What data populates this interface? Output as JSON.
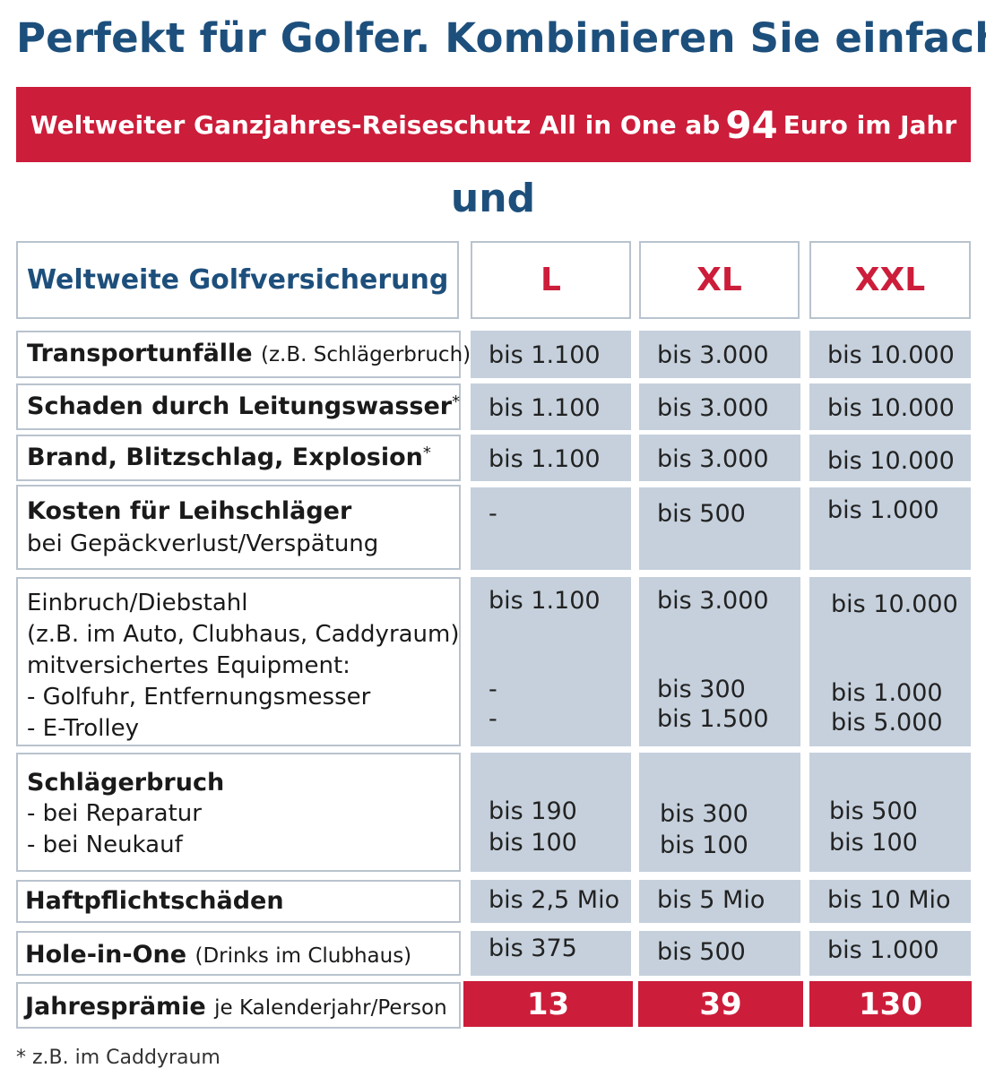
{
  "title": "Perfekt für Golfer. Kombinieren Sie einfach.",
  "banner": {
    "before": "Weltweiter Ganzjahres-Reiseschutz All in One ab",
    "amount": "94",
    "after": "Euro im Jahr"
  },
  "connector": "und",
  "table": {
    "header_label": "Weltweite Golfversicherung",
    "tiers": [
      "L",
      "XL",
      "XXL"
    ],
    "rows": [
      {
        "label": "Transportunfälle",
        "note": "(z.B. Schlägerbruch)",
        "values": [
          [
            "bis 1.100"
          ],
          [
            "bis 3.000"
          ],
          [
            "bis 10.000"
          ]
        ]
      },
      {
        "label": "Schaden durch Leitungswasser",
        "asterisk": "*",
        "values": [
          [
            "bis 1.100"
          ],
          [
            "bis 3.000"
          ],
          [
            "bis 10.000"
          ]
        ]
      },
      {
        "label": "Brand, Blitzschlag, Explosion",
        "asterisk": "*",
        "values": [
          [
            "bis 1.100"
          ],
          [
            "bis 3.000"
          ],
          [
            "bis 10.000"
          ]
        ]
      },
      {
        "label": "Kosten für Leihschläger",
        "sub": [
          "bei Gepäckverlust/Verspätung"
        ],
        "values": [
          [
            "-"
          ],
          [
            "bis 500"
          ],
          [
            "bis 1.000"
          ]
        ]
      },
      {
        "sub": [
          "Einbruch/Diebstahl",
          "(z.B. im Auto, Clubhaus, Caddyraum)",
          "mitversichertes Equipment:",
          "- Golfuhr, Entfernungsmesser",
          "- E-Trolley"
        ],
        "values": [
          [
            "bis 1.100",
            "-",
            "-"
          ],
          [
            "bis 3.000",
            "bis 300",
            "bis 1.500"
          ],
          [
            "bis 10.000",
            "bis 1.000",
            "bis 5.000"
          ]
        ]
      },
      {
        "label": "Schlägerbruch",
        "sub": [
          "- bei Reparatur",
          "- bei Neukauf"
        ],
        "values": [
          [
            "bis 190",
            "bis 100"
          ],
          [
            "bis 300",
            "bis 100"
          ],
          [
            "bis 500",
            "bis 100"
          ]
        ]
      },
      {
        "label": "Haftpflichtschäden",
        "values": [
          [
            "bis 2,5 Mio"
          ],
          [
            "bis 5 Mio"
          ],
          [
            "bis 10 Mio"
          ]
        ]
      },
      {
        "label": "Hole-in-One",
        "note": "(Drinks im Clubhaus)",
        "values": [
          [
            "bis 375"
          ],
          [
            "bis 500"
          ],
          [
            "bis 1.000"
          ]
        ]
      }
    ],
    "premium": {
      "label": "Jahresprämie",
      "note": "je Kalenderjahr/Person",
      "values": [
        "13",
        "39",
        "130"
      ]
    }
  },
  "footnote": "* z.B. im Caddyraum",
  "colors": {
    "accent_red": "#cc1d3a",
    "brand_blue": "#1d4f7c",
    "cell_gray": "#c5d0dc"
  }
}
